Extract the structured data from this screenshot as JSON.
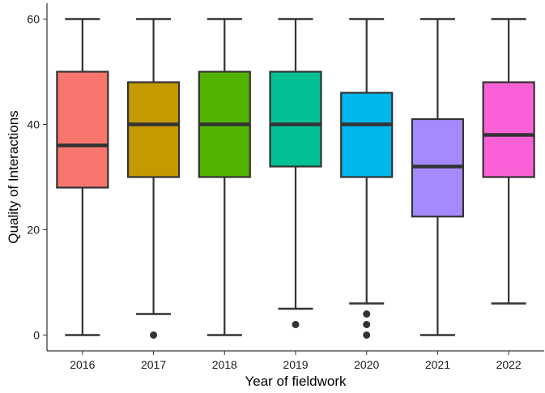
{
  "chart_data": {
    "type": "box",
    "xlabel": "Year of fieldwork",
    "ylabel": "Quality of Interactions",
    "ylim": [
      -3,
      63
    ],
    "yticks": [
      0,
      20,
      40,
      60
    ],
    "grid": false,
    "legend": "none",
    "categories": [
      "2016",
      "2017",
      "2018",
      "2019",
      "2020",
      "2021",
      "2022"
    ],
    "boxes": [
      {
        "category": "2016",
        "min": 0,
        "q1": 28,
        "median": 36,
        "q3": 50,
        "max": 60,
        "outliers": [],
        "color": "#F8766D"
      },
      {
        "category": "2017",
        "min": 4,
        "q1": 30,
        "median": 40,
        "q3": 48,
        "max": 60,
        "outliers": [
          0
        ],
        "color": "#C49A00"
      },
      {
        "category": "2018",
        "min": 0,
        "q1": 30,
        "median": 40,
        "q3": 50,
        "max": 60,
        "outliers": [],
        "color": "#53B400"
      },
      {
        "category": "2019",
        "min": 5,
        "q1": 32,
        "median": 40,
        "q3": 50,
        "max": 60,
        "outliers": [
          2
        ],
        "color": "#00C094"
      },
      {
        "category": "2020",
        "min": 6,
        "q1": 30,
        "median": 40,
        "q3": 46,
        "max": 60,
        "outliers": [
          0,
          2,
          4
        ],
        "color": "#00B6EB"
      },
      {
        "category": "2021",
        "min": 0,
        "q1": 22.5,
        "median": 32,
        "q3": 41,
        "max": 60,
        "outliers": [],
        "color": "#A58AFF"
      },
      {
        "category": "2022",
        "min": 6,
        "q1": 30,
        "median": 38,
        "q3": 48,
        "max": 60,
        "outliers": [],
        "color": "#FB61D7"
      }
    ]
  }
}
